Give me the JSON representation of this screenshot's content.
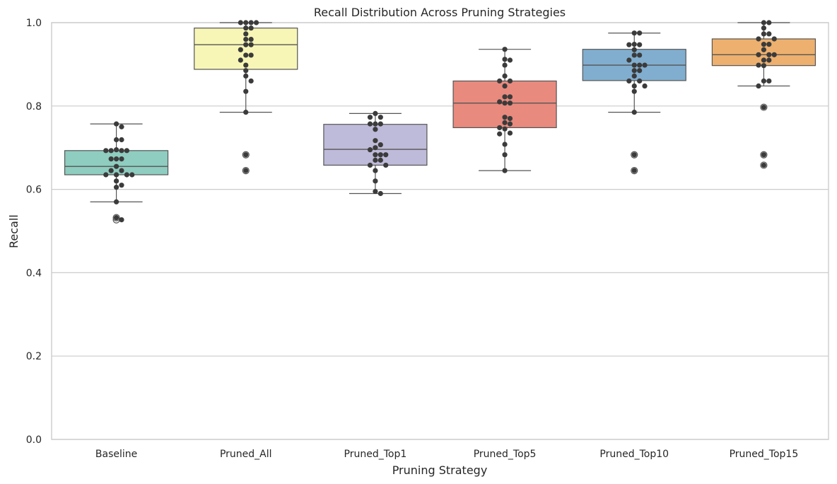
{
  "chart_data": {
    "type": "box",
    "title": "Recall Distribution Across Pruning Strategies",
    "xlabel": "Pruning Strategy",
    "ylabel": "Recall",
    "ylim": [
      0.0,
      1.0
    ],
    "yticks": [
      "0.0",
      "0.2",
      "0.4",
      "0.6",
      "0.8",
      "1.0"
    ],
    "grid": "horizontal",
    "categories": [
      "Baseline",
      "Pruned_All",
      "Pruned_Top1",
      "Pruned_Top5",
      "Pruned_Top10",
      "Pruned_Top15"
    ],
    "colors": [
      "#8ecdc0",
      "#f7f6b6",
      "#bebad9",
      "#e98a7e",
      "#81aecf",
      "#edb06e"
    ],
    "boxes": [
      {
        "category": "Baseline",
        "q1": 0.635,
        "median": 0.655,
        "q3": 0.693,
        "whisker_low": 0.57,
        "whisker_high": 0.757,
        "outliers": [
          0.532,
          0.527
        ],
        "points": [
          0.757,
          0.75,
          0.719,
          0.719,
          0.695,
          0.693,
          0.693,
          0.693,
          0.693,
          0.673,
          0.673,
          0.673,
          0.655,
          0.645,
          0.645,
          0.635,
          0.635,
          0.635,
          0.635,
          0.62,
          0.61,
          0.605,
          0.57,
          0.532,
          0.527
        ]
      },
      {
        "category": "Pruned_All",
        "q1": 0.888,
        "median": 0.947,
        "q3": 0.987,
        "whisker_low": 0.785,
        "whisker_high": 1.0,
        "outliers": [
          0.683,
          0.645
        ],
        "points": [
          1.0,
          1.0,
          1.0,
          1.0,
          0.987,
          0.987,
          0.973,
          0.96,
          0.96,
          0.947,
          0.947,
          0.935,
          0.922,
          0.922,
          0.91,
          0.898,
          0.885,
          0.872,
          0.86,
          0.835,
          0.785,
          0.683,
          0.645
        ]
      },
      {
        "category": "Pruned_Top1",
        "q1": 0.658,
        "median": 0.696,
        "q3": 0.756,
        "whisker_low": 0.59,
        "whisker_high": 0.782,
        "outliers": [],
        "points": [
          0.782,
          0.773,
          0.773,
          0.757,
          0.757,
          0.757,
          0.744,
          0.717,
          0.707,
          0.7,
          0.695,
          0.683,
          0.683,
          0.683,
          0.67,
          0.67,
          0.658,
          0.658,
          0.645,
          0.62,
          0.595,
          0.59
        ]
      },
      {
        "category": "Pruned_Top5",
        "q1": 0.748,
        "median": 0.807,
        "q3": 0.86,
        "whisker_low": 0.645,
        "whisker_high": 0.936,
        "outliers": [],
        "points": [
          0.936,
          0.912,
          0.91,
          0.898,
          0.872,
          0.86,
          0.86,
          0.848,
          0.822,
          0.822,
          0.81,
          0.807,
          0.807,
          0.773,
          0.77,
          0.76,
          0.757,
          0.748,
          0.745,
          0.735,
          0.733,
          0.708,
          0.683,
          0.645
        ]
      },
      {
        "category": "Pruned_Top10",
        "q1": 0.861,
        "median": 0.898,
        "q3": 0.936,
        "whisker_low": 0.785,
        "whisker_high": 0.975,
        "outliers": [
          0.683,
          0.645
        ],
        "points": [
          0.975,
          0.975,
          0.948,
          0.947,
          0.947,
          0.935,
          0.922,
          0.922,
          0.91,
          0.898,
          0.898,
          0.898,
          0.885,
          0.885,
          0.872,
          0.86,
          0.86,
          0.848,
          0.848,
          0.835,
          0.785,
          0.683,
          0.645
        ]
      },
      {
        "category": "Pruned_Top15",
        "q1": 0.897,
        "median": 0.923,
        "q3": 0.961,
        "whisker_low": 0.848,
        "whisker_high": 1.0,
        "outliers": [
          0.797,
          0.683,
          0.658
        ],
        "points": [
          1.0,
          1.0,
          0.987,
          0.973,
          0.973,
          0.961,
          0.961,
          0.948,
          0.948,
          0.935,
          0.923,
          0.923,
          0.923,
          0.91,
          0.91,
          0.898,
          0.897,
          0.86,
          0.86,
          0.848,
          0.797,
          0.683,
          0.658
        ]
      }
    ]
  }
}
